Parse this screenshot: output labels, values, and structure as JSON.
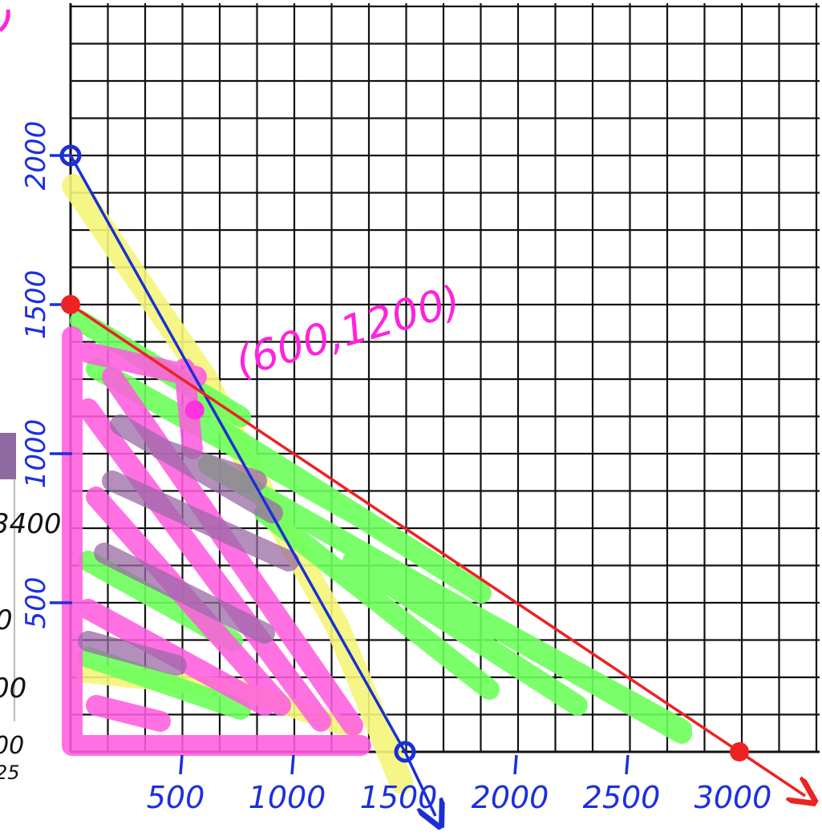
{
  "colors": {
    "grid": "#111111",
    "blue_line": "#1a2fd6",
    "red_line": "#ee2222",
    "magenta": "#ff22dd",
    "yellow": "#f7f77a",
    "green": "#66ff55",
    "pink_fill": "#ff55dd",
    "purple_fill": "#9b6fa8",
    "hand_blue": "#1c2fe0"
  },
  "chart_data": {
    "type": "line",
    "title": "",
    "xlabel": "",
    "ylabel": "",
    "xlim": [
      0,
      3000
    ],
    "ylim": [
      0,
      2000
    ],
    "grid": true,
    "x_ticks": [
      "500",
      "1000",
      "1500",
      "2000",
      "2500",
      "3000"
    ],
    "y_ticks": [
      "500",
      "1000",
      "1500",
      "2000"
    ],
    "series": [
      {
        "color": "blue",
        "points": [
          [
            0,
            2000
          ],
          [
            1500,
            0
          ]
        ]
      },
      {
        "color": "red",
        "points": [
          [
            0,
            1500
          ],
          [
            3000,
            0
          ]
        ]
      }
    ],
    "intercept_points": [
      {
        "x": 0,
        "y": 2000,
        "color": "blue"
      },
      {
        "x": 1500,
        "y": 0,
        "color": "blue"
      },
      {
        "x": 0,
        "y": 1500,
        "color": "red"
      },
      {
        "x": 3000,
        "y": 0,
        "color": "red"
      }
    ],
    "intersection": {
      "x": 600,
      "y": 1200,
      "label": "(600,1200)"
    }
  },
  "left_edge_fragments": [
    "3400",
    "0",
    "00",
    "00",
    "25"
  ]
}
